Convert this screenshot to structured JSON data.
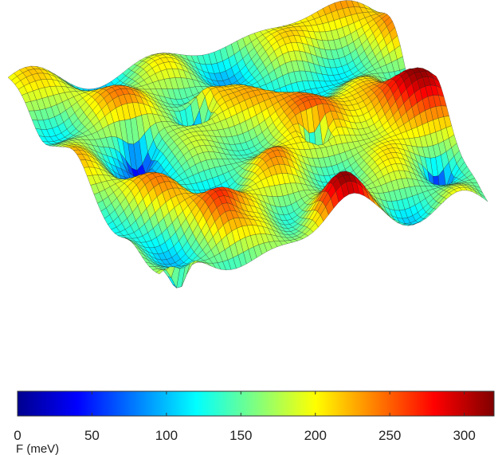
{
  "chart_data": {
    "type": "surface",
    "colormap": "jet",
    "grid": false,
    "colorbar": {
      "placement": "bottom",
      "label": "F (meV)",
      "range": [
        0,
        320
      ],
      "ticks": [
        0,
        50,
        100,
        150,
        200,
        250,
        300
      ],
      "tick_labels": [
        "0",
        "50",
        "100",
        "150",
        "200",
        "250",
        "300"
      ]
    }
  }
}
